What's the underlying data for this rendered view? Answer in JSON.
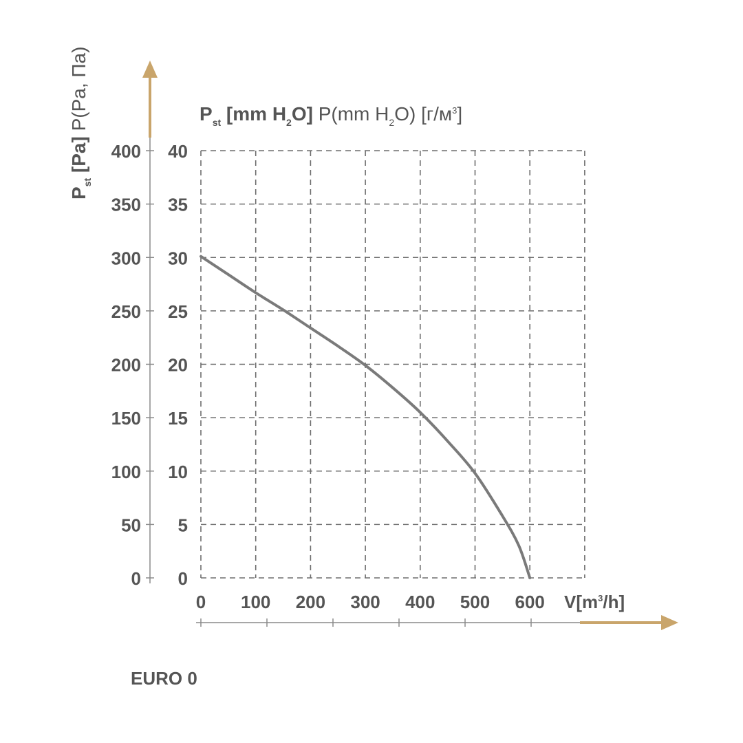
{
  "colors": {
    "axis": "#8a8a8a",
    "grid": "#6d6d6d",
    "curve": "#7a7a7a",
    "arrow": "#c9a56b",
    "text": "#555555"
  },
  "chart_data": {
    "type": "line",
    "title_mm": {
      "p": "P",
      "p_sub": "st",
      "bracket_open": "[mm H",
      "h_sub": "2",
      "bracket_close": "O]",
      "alt": "P(mm H",
      "alt_sub": "2",
      "alt_close": "O) [г/м",
      "alt_sup": "3",
      "alt_end": "]"
    },
    "ylabel_pa": {
      "p": "P",
      "p_sub": "st",
      "unit": "[Pa]",
      "alt": "P(Pa, Па)"
    },
    "xlabel": {
      "pre": "V[m",
      "sup": "3",
      "post": "/h]"
    },
    "x_ticks": [
      "0",
      "100",
      "200",
      "300",
      "400",
      "500",
      "600"
    ],
    "y_ticks_pa": [
      "0",
      "50",
      "100",
      "150",
      "200",
      "250",
      "300",
      "350",
      "400"
    ],
    "y_ticks_mm": [
      "0",
      "5",
      "10",
      "15",
      "20",
      "25",
      "30",
      "35",
      "40"
    ],
    "xlim": [
      0,
      700
    ],
    "ylim_pa": [
      0,
      400
    ],
    "grid": true,
    "series": [
      {
        "x": [
          0,
          50,
          100,
          150,
          200,
          250,
          300,
          350,
          400,
          450,
          500,
          550,
          580,
          600
        ],
        "y": [
          301,
          284,
          267,
          251,
          234,
          217,
          199,
          178,
          155,
          128,
          98,
          58,
          30,
          0
        ]
      }
    ]
  },
  "model_label": "EURO 0"
}
